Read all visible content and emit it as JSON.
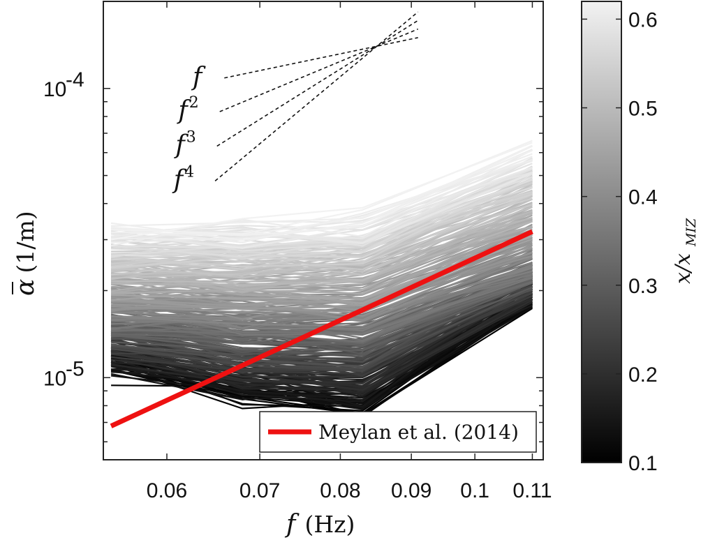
{
  "chart_data": {
    "type": "line",
    "x_scale": "log",
    "y_scale": "log",
    "xlim": [
      0.054,
      0.112
    ],
    "ylim": [
      5.2e-06,
      0.0002
    ],
    "x_ticks": [
      0.06,
      0.07,
      0.08,
      0.09,
      0.1,
      0.11
    ],
    "x_tick_labels": [
      "0.06",
      "0.07",
      "0.08",
      "0.09",
      "0.1",
      "0.11"
    ],
    "y_ticks": [
      1e-05,
      0.0001
    ],
    "y_tick_labels": [
      {
        "base": "10",
        "exp": "-5"
      },
      {
        "base": "10",
        "exp": "-4"
      }
    ],
    "xlabel": {
      "symbol": "f",
      "unit": " (Hz)"
    },
    "ylabel": {
      "symbol": "α",
      "unit": " (1/m)"
    },
    "grid": false,
    "x": [
      0.0547,
      0.068,
      0.083,
      0.11
    ],
    "ensemble": {
      "description_free": true,
      "count": 320,
      "color_value_range": [
        0.1,
        0.62
      ],
      "low_color_profile": [
        1.05e-05,
        8.5e-06,
        7.8e-06,
        1.85e-05
      ],
      "mid_color_profile": [
        1.65e-05,
        1.55e-05,
        1.52e-05,
        2.45e-05
      ],
      "high_color_profile": [
        3.2e-05,
        3.3e-05,
        3.5e-05,
        6e-05
      ]
    },
    "series": [
      {
        "name": "Meylan et al. (2014)",
        "color": "#ee1111",
        "x": [
          0.0547,
          0.11
        ],
        "values": [
          6.8e-06,
          3.2e-05
        ]
      }
    ],
    "reference_slopes": [
      {
        "label_base": "f",
        "label_exp": "",
        "power": 1
      },
      {
        "label_base": "f",
        "label_exp": "2",
        "power": 2
      },
      {
        "label_base": "f",
        "label_exp": "3",
        "power": 3
      },
      {
        "label_base": "f",
        "label_exp": "4",
        "power": 4
      }
    ],
    "legend": {
      "placement": "bottom-right",
      "entries": [
        "Meylan et al. (2014)"
      ]
    },
    "colorbar": {
      "label_base": "x/x",
      "label_sub": "MIZ",
      "range": [
        0.1,
        0.62
      ],
      "ticks": [
        0.1,
        0.2,
        0.3,
        0.4,
        0.5,
        0.6
      ],
      "tick_labels": [
        "0.1",
        "0.2",
        "0.3",
        "0.4",
        "0.5",
        "0.6"
      ],
      "colormap": "gray"
    }
  }
}
